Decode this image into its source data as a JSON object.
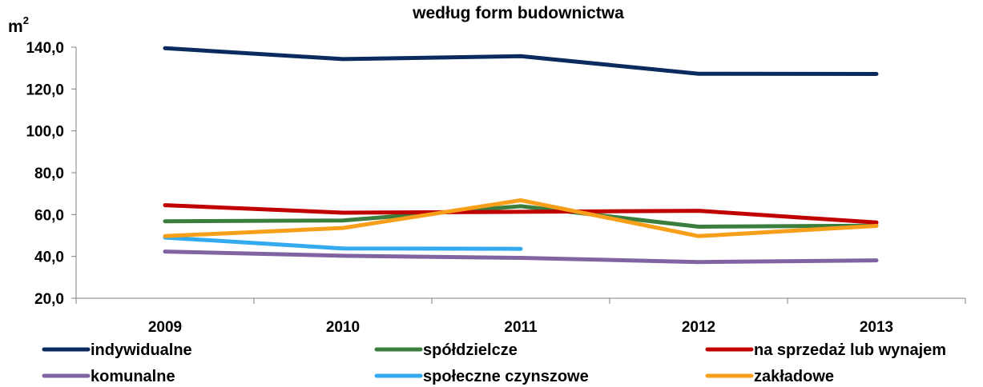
{
  "chart_data": {
    "type": "line",
    "title": "według form budownictwa",
    "ylabel": "m",
    "ylabel_sup": "2",
    "categories": [
      "2009",
      "2010",
      "2011",
      "2012",
      "2013"
    ],
    "ylim": [
      20,
      140
    ],
    "yticks": [
      "20,0",
      "40,0",
      "60,0",
      "80,0",
      "100,0",
      "120,0",
      "140,0"
    ],
    "grid": false,
    "legend_position": "bottom",
    "series": [
      {
        "name": "indywidualne",
        "color": "#0b2a5e",
        "values": [
          139.5,
          134.3,
          135.7,
          127.3,
          127.2
        ]
      },
      {
        "name": "spółdzielcze",
        "color": "#3a7d3c",
        "values": [
          56.8,
          57.2,
          64.0,
          54.2,
          54.7
        ]
      },
      {
        "name": "na sprzedaż lub wynajem",
        "color": "#c00000",
        "values": [
          64.5,
          60.9,
          61.3,
          61.8,
          56.2
        ]
      },
      {
        "name": "komunalne",
        "color": "#8064a2",
        "values": [
          42.3,
          40.3,
          39.3,
          37.3,
          38.1
        ]
      },
      {
        "name": "społeczne czynszowe",
        "color": "#33aaf0",
        "values": [
          49.0,
          43.8,
          43.6,
          null,
          null
        ]
      },
      {
        "name": "zakładowe",
        "color": "#f79f1a",
        "values": [
          49.7,
          53.6,
          66.8,
          49.7,
          54.6
        ]
      }
    ]
  }
}
